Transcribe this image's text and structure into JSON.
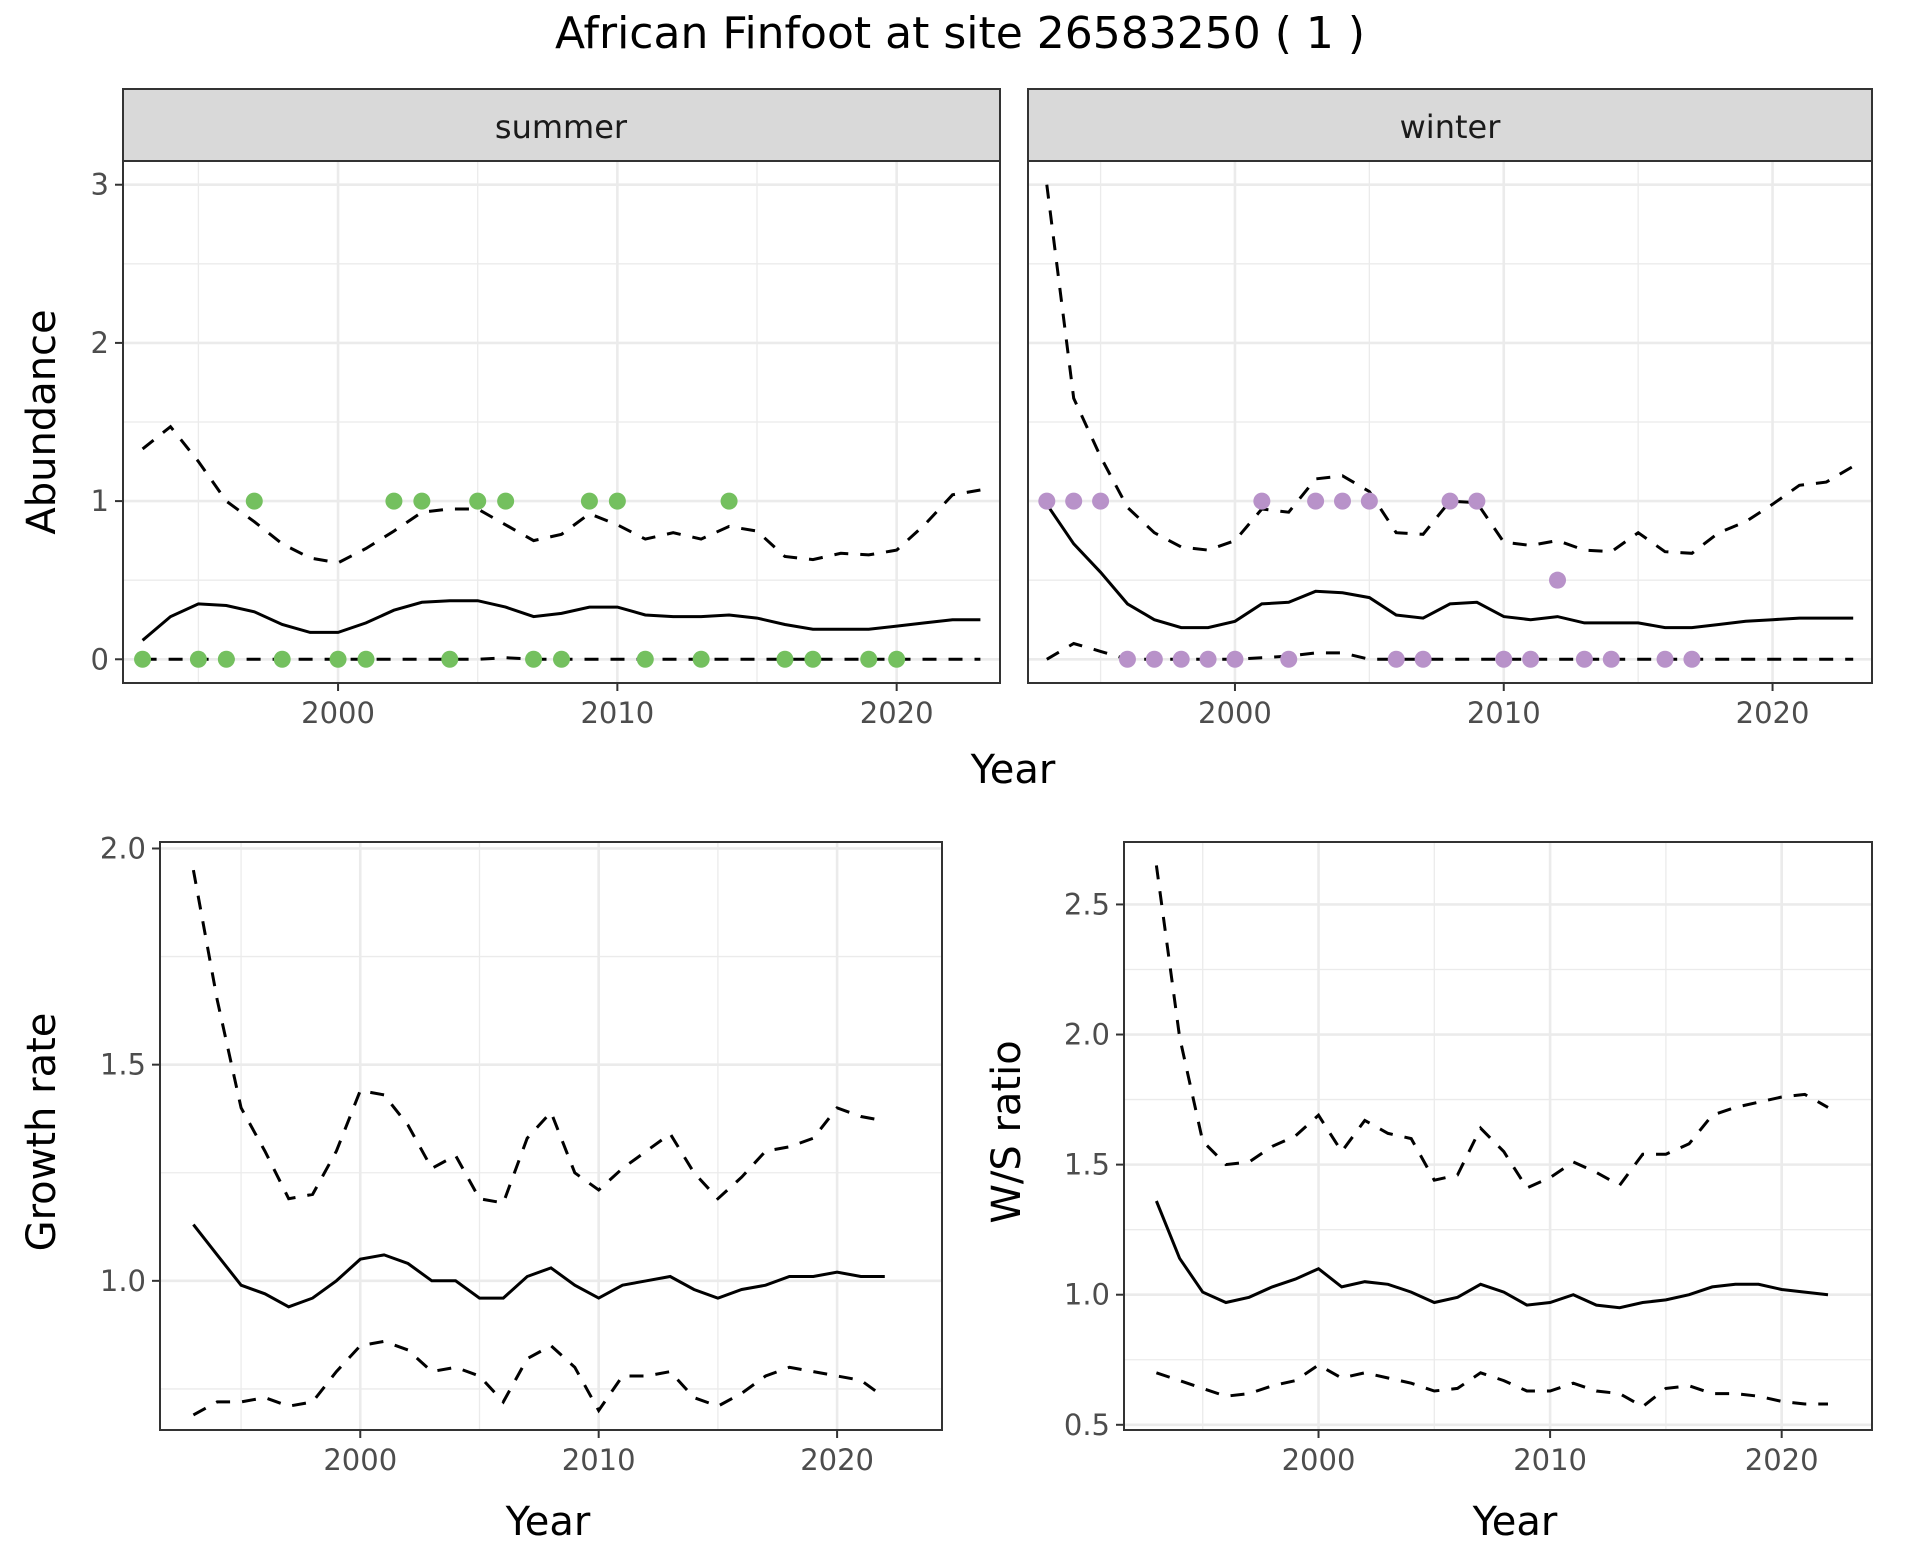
{
  "title": "African Finfoot at site 26583250 ( 1 )",
  "colors": {
    "summer_points": "#74c05f",
    "winter_points": "#b892c9",
    "lines": "#000000",
    "strip_fill": "#d9d9d9"
  },
  "chart_data": [
    {
      "type": "line",
      "facet": "summer",
      "strip": "summer",
      "xlabel": "Year",
      "ylabel": "Abundance",
      "xlim": [
        1992.3,
        2023.7
      ],
      "ylim": [
        -0.15,
        3.15
      ],
      "xticks": [
        2000,
        2010,
        2020
      ],
      "yticks": [
        0,
        1,
        2,
        3
      ],
      "grid": true,
      "x": [
        1993,
        1994,
        1995,
        1996,
        1997,
        1998,
        1999,
        2000,
        2001,
        2002,
        2003,
        2004,
        2005,
        2006,
        2007,
        2008,
        2009,
        2010,
        2011,
        2012,
        2013,
        2014,
        2015,
        2016,
        2017,
        2018,
        2019,
        2020,
        2021,
        2022,
        2023
      ],
      "series": [
        {
          "role": "mean",
          "values": [
            0.12,
            0.27,
            0.35,
            0.34,
            0.3,
            0.22,
            0.17,
            0.17,
            0.23,
            0.31,
            0.36,
            0.37,
            0.37,
            0.33,
            0.27,
            0.29,
            0.33,
            0.33,
            0.28,
            0.27,
            0.27,
            0.28,
            0.26,
            0.22,
            0.19,
            0.19,
            0.19,
            0.21,
            0.23,
            0.25,
            0.25
          ]
        },
        {
          "role": "upper",
          "values": [
            1.33,
            1.47,
            1.25,
            1.0,
            0.87,
            0.73,
            0.64,
            0.61,
            0.7,
            0.81,
            0.93,
            0.95,
            0.95,
            0.85,
            0.75,
            0.79,
            0.92,
            0.85,
            0.76,
            0.8,
            0.76,
            0.84,
            0.81,
            0.65,
            0.63,
            0.67,
            0.66,
            0.69,
            0.85,
            1.04,
            1.07
          ]
        },
        {
          "role": "lower",
          "values": [
            0,
            0,
            0,
            0,
            0,
            0,
            0,
            0,
            0,
            0,
            0,
            0,
            0,
            0.01,
            0,
            0,
            0,
            0,
            0,
            0,
            0,
            0,
            0,
            0,
            0,
            0,
            0,
            0,
            0,
            0,
            0
          ]
        }
      ],
      "points": {
        "x": [
          1993,
          1995,
          1996,
          1997,
          1998,
          2000,
          2001,
          2002,
          2003,
          2004,
          2005,
          2006,
          2007,
          2008,
          2009,
          2010,
          2011,
          2013,
          2014,
          2016,
          2017,
          2019,
          2020
        ],
        "y": [
          0,
          0,
          0,
          1,
          0,
          0,
          0,
          1,
          1,
          0,
          1,
          1,
          0,
          0,
          1,
          1,
          0,
          0,
          1,
          0,
          0,
          0,
          0
        ]
      }
    },
    {
      "type": "line",
      "facet": "winter",
      "strip": "winter",
      "xlabel": "Year",
      "ylabel": "Abundance",
      "xlim": [
        1992.3,
        2023.7
      ],
      "ylim": [
        -0.15,
        3.15
      ],
      "xticks": [
        2000,
        2010,
        2020
      ],
      "yticks": [
        0,
        1,
        2,
        3
      ],
      "grid": true,
      "x": [
        1993,
        1994,
        1995,
        1996,
        1997,
        1998,
        1999,
        2000,
        2001,
        2002,
        2003,
        2004,
        2005,
        2006,
        2007,
        2008,
        2009,
        2010,
        2011,
        2012,
        2013,
        2014,
        2015,
        2016,
        2017,
        2018,
        2019,
        2020,
        2021,
        2022,
        2023
      ],
      "series": [
        {
          "role": "mean",
          "values": [
            0.98,
            0.73,
            0.55,
            0.35,
            0.25,
            0.2,
            0.2,
            0.24,
            0.35,
            0.36,
            0.43,
            0.42,
            0.39,
            0.28,
            0.26,
            0.35,
            0.36,
            0.27,
            0.25,
            0.27,
            0.23,
            0.23,
            0.23,
            0.2,
            0.2,
            0.22,
            0.24,
            0.25,
            0.26,
            0.26,
            0.26
          ]
        },
        {
          "role": "upper",
          "values": [
            3.0,
            1.65,
            1.28,
            0.96,
            0.8,
            0.71,
            0.69,
            0.75,
            0.95,
            0.93,
            1.14,
            1.16,
            1.06,
            0.8,
            0.79,
            1.0,
            0.99,
            0.74,
            0.72,
            0.75,
            0.69,
            0.68,
            0.8,
            0.68,
            0.67,
            0.8,
            0.87,
            0.98,
            1.1,
            1.12,
            1.22
          ]
        },
        {
          "role": "lower",
          "values": [
            0,
            0.1,
            0.05,
            0,
            0,
            0,
            0,
            0,
            0.01,
            0.02,
            0.04,
            0.04,
            0,
            0,
            0,
            0,
            0,
            0,
            0,
            0,
            0,
            0,
            0,
            0,
            0,
            0,
            0,
            0,
            0,
            0,
            0
          ]
        }
      ],
      "points": {
        "x": [
          1993,
          1994,
          1995,
          1996,
          1997,
          1998,
          1999,
          2000,
          2001,
          2002,
          2003,
          2004,
          2005,
          2006,
          2007,
          2008,
          2009,
          2010,
          2011,
          2012,
          2013,
          2014,
          2016,
          2017
        ],
        "y": [
          1,
          1,
          1,
          0,
          0,
          0,
          0,
          0,
          1,
          0,
          1,
          1,
          1,
          0,
          0,
          1,
          1,
          0,
          0,
          0.5,
          0,
          0,
          0,
          0
        ]
      }
    },
    {
      "type": "line",
      "facet": "growth",
      "xlabel": "Year",
      "ylabel": "Growth rate",
      "xlim": [
        1991.6,
        2024.4
      ],
      "ylim": [
        0.655,
        2.015
      ],
      "xticks": [
        2000,
        2010,
        2020
      ],
      "yticks": [
        1.0,
        1.5,
        2.0
      ],
      "grid": true,
      "x": [
        1993,
        1994,
        1995,
        1996,
        1997,
        1998,
        1999,
        2000,
        2001,
        2002,
        2003,
        2004,
        2005,
        2006,
        2007,
        2008,
        2009,
        2010,
        2011,
        2012,
        2013,
        2014,
        2015,
        2016,
        2017,
        2018,
        2019,
        2020,
        2021,
        2022
      ],
      "series": [
        {
          "role": "mean",
          "values": [
            1.13,
            1.06,
            0.99,
            0.97,
            0.94,
            0.96,
            1.0,
            1.05,
            1.06,
            1.04,
            1.0,
            1.0,
            0.96,
            0.96,
            1.01,
            1.03,
            0.99,
            0.96,
            0.99,
            1.0,
            1.01,
            0.98,
            0.96,
            0.98,
            0.99,
            1.01,
            1.01,
            1.02,
            1.01,
            1.01
          ]
        },
        {
          "role": "upper",
          "values": [
            1.95,
            1.65,
            1.4,
            1.3,
            1.19,
            1.2,
            1.3,
            1.44,
            1.43,
            1.36,
            1.26,
            1.29,
            1.19,
            1.18,
            1.33,
            1.39,
            1.25,
            1.21,
            1.26,
            1.3,
            1.34,
            1.25,
            1.19,
            1.24,
            1.3,
            1.31,
            1.33,
            1.4,
            1.38,
            1.37
          ]
        },
        {
          "role": "lower",
          "values": [
            0.69,
            0.72,
            0.72,
            0.73,
            0.71,
            0.72,
            0.79,
            0.85,
            0.86,
            0.84,
            0.79,
            0.8,
            0.78,
            0.72,
            0.82,
            0.85,
            0.8,
            0.7,
            0.78,
            0.78,
            0.79,
            0.73,
            0.71,
            0.74,
            0.78,
            0.8,
            0.79,
            0.78,
            0.77,
            0.73
          ]
        }
      ]
    },
    {
      "type": "line",
      "facet": "ws-ratio",
      "xlabel": "Year",
      "ylabel": "W/S ratio",
      "xlim": [
        1991.6,
        2023.9
      ],
      "ylim": [
        0.48,
        2.74
      ],
      "xticks": [
        2000,
        2010,
        2020
      ],
      "yticks": [
        0.5,
        1.0,
        1.5,
        2.0,
        2.5
      ],
      "grid": true,
      "x": [
        1993,
        1994,
        1995,
        1996,
        1997,
        1998,
        1999,
        2000,
        2001,
        2002,
        2003,
        2004,
        2005,
        2006,
        2007,
        2008,
        2009,
        2010,
        2011,
        2012,
        2013,
        2014,
        2015,
        2016,
        2017,
        2018,
        2019,
        2020,
        2021,
        2022
      ],
      "series": [
        {
          "role": "mean",
          "values": [
            1.36,
            1.14,
            1.01,
            0.97,
            0.99,
            1.03,
            1.06,
            1.1,
            1.03,
            1.05,
            1.04,
            1.01,
            0.97,
            0.99,
            1.04,
            1.01,
            0.96,
            0.97,
            1.0,
            0.96,
            0.95,
            0.97,
            0.98,
            1.0,
            1.03,
            1.04,
            1.04,
            1.02,
            1.01,
            1.0
          ]
        },
        {
          "role": "upper",
          "values": [
            2.65,
            1.99,
            1.59,
            1.5,
            1.51,
            1.57,
            1.61,
            1.69,
            1.55,
            1.67,
            1.62,
            1.6,
            1.44,
            1.46,
            1.64,
            1.55,
            1.41,
            1.45,
            1.51,
            1.47,
            1.42,
            1.54,
            1.54,
            1.58,
            1.69,
            1.72,
            1.74,
            1.76,
            1.77,
            1.72
          ]
        },
        {
          "role": "lower",
          "values": [
            0.7,
            0.67,
            0.64,
            0.61,
            0.62,
            0.65,
            0.67,
            0.73,
            0.68,
            0.7,
            0.68,
            0.66,
            0.63,
            0.64,
            0.7,
            0.67,
            0.63,
            0.63,
            0.66,
            0.63,
            0.62,
            0.57,
            0.64,
            0.65,
            0.62,
            0.62,
            0.61,
            0.59,
            0.58,
            0.58
          ]
        }
      ]
    }
  ]
}
